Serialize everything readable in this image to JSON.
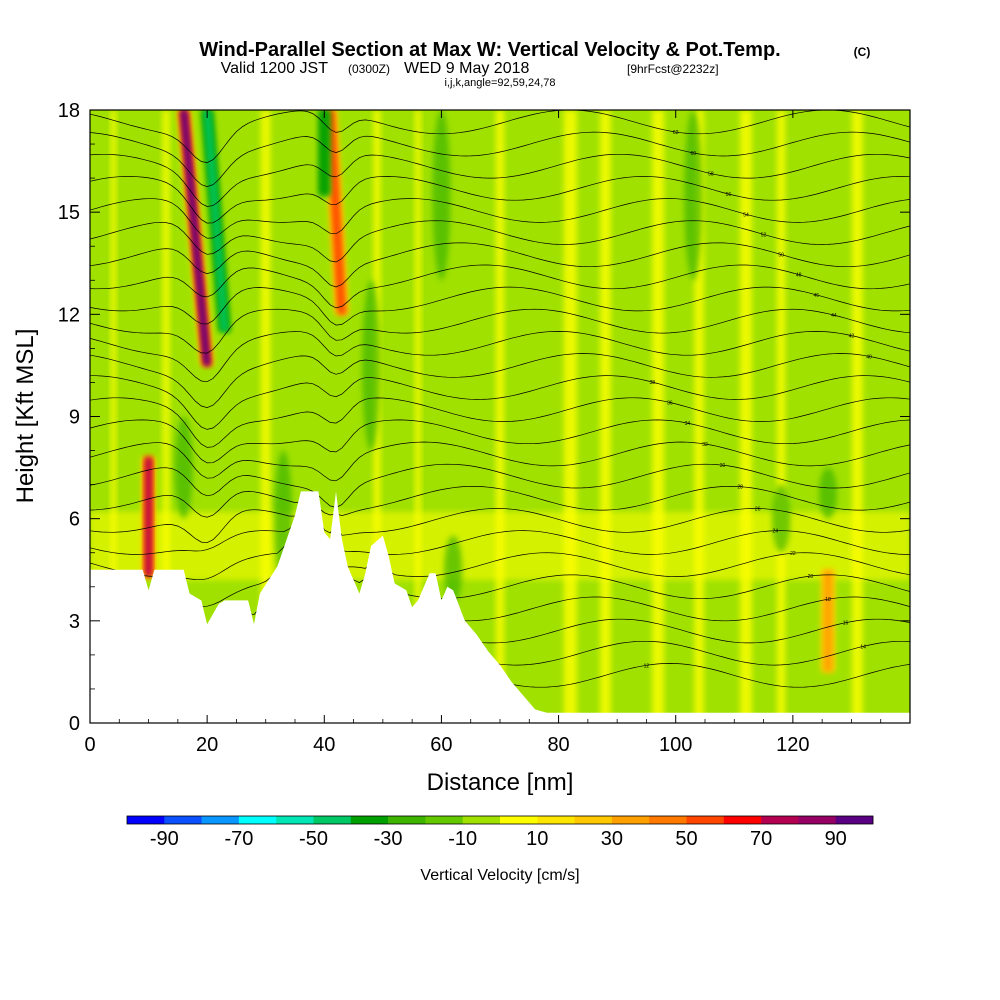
{
  "header": {
    "title_main": "Wind-Parallel Section at Max W: Vertical Velocity & Pot.Temp.",
    "title_unit": "(C)",
    "valid_a": "Valid 1200 JST",
    "valid_z": "(0300Z)",
    "valid_b": "WED 9 May 2018",
    "valid_fcst": "[9hrFcst@2232z]",
    "ijk": "i,j,k,angle=92,59,24,78"
  },
  "chart_data": {
    "type": "heatmap",
    "title": "Wind-Parallel Section at Max W: Vertical Velocity & Pot.Temp. (C)",
    "xlabel": "Distance [nm]",
    "ylabel": "Height [Kft MSL]",
    "xlim": [
      0,
      140
    ],
    "ylim": [
      0,
      18
    ],
    "x_ticks": [
      "0",
      "20",
      "40",
      "60",
      "80",
      "100",
      "120"
    ],
    "y_ticks": [
      "0",
      "3",
      "6",
      "9",
      "12",
      "15",
      "18"
    ],
    "colorbar": {
      "label": "Vertical Velocity [cm/s]",
      "tick_labels": [
        "-90",
        "-70",
        "-50",
        "-30",
        "-10",
        "10",
        "30",
        "50",
        "70",
        "90"
      ],
      "bins": [
        -100,
        -90,
        -80,
        -70,
        -60,
        -50,
        -40,
        -30,
        -20,
        -10,
        0,
        10,
        20,
        30,
        40,
        50,
        60,
        70,
        80,
        90,
        100
      ],
      "colors": [
        "#0000ff",
        "#0a50ff",
        "#0a96ff",
        "#00ffff",
        "#00e6b4",
        "#00c864",
        "#00a000",
        "#3cb400",
        "#64c800",
        "#a0e100",
        "#ffff00",
        "#ffe600",
        "#ffc800",
        "#ffa000",
        "#ff7800",
        "#ff4600",
        "#ff0000",
        "#b40050",
        "#960064",
        "#5a0082"
      ]
    },
    "terrain_kft": [
      [
        0,
        4.5
      ],
      [
        9,
        4.5
      ],
      [
        10,
        3.9
      ],
      [
        11,
        4.5
      ],
      [
        16,
        4.5
      ],
      [
        17,
        3.8
      ],
      [
        19,
        3.6
      ],
      [
        20,
        2.9
      ],
      [
        22,
        3.5
      ],
      [
        23,
        3.6
      ],
      [
        27,
        3.6
      ],
      [
        28,
        2.9
      ],
      [
        29,
        3.8
      ],
      [
        32,
        4.6
      ],
      [
        34,
        5.6
      ],
      [
        35,
        6.1
      ],
      [
        36,
        6.8
      ],
      [
        39,
        6.8
      ],
      [
        40,
        5.6
      ],
      [
        41,
        5.4
      ],
      [
        42,
        6.8
      ],
      [
        43,
        5.4
      ],
      [
        44,
        4.6
      ],
      [
        46,
        3.8
      ],
      [
        47,
        4.4
      ],
      [
        48,
        5.2
      ],
      [
        50,
        5.5
      ],
      [
        51,
        4.9
      ],
      [
        52,
        4.1
      ],
      [
        54,
        3.9
      ],
      [
        55,
        3.4
      ],
      [
        56,
        3.6
      ],
      [
        57,
        4.0
      ],
      [
        58,
        4.4
      ],
      [
        59,
        4.4
      ],
      [
        60,
        3.6
      ],
      [
        61,
        4.0
      ],
      [
        62,
        3.9
      ],
      [
        64,
        3.0
      ],
      [
        66,
        2.6
      ],
      [
        68,
        2.1
      ],
      [
        70,
        1.7
      ],
      [
        72,
        1.2
      ],
      [
        74,
        0.8
      ],
      [
        76,
        0.4
      ],
      [
        78,
        0.3
      ],
      [
        80,
        0.3
      ],
      [
        139,
        0.3
      ]
    ],
    "updraft_columns": [
      {
        "x_nm": 10,
        "z_bottom": 4.3,
        "z_top": 7.8,
        "peak_cms": 75,
        "lean": 0
      },
      {
        "x_nm": 20,
        "z_bottom": 10.5,
        "z_top": 18,
        "peak_cms": 95,
        "lean": -4
      },
      {
        "x_nm": 43,
        "z_bottom": 12.0,
        "z_top": 18,
        "peak_cms": 65,
        "lean": -2
      },
      {
        "x_nm": 126,
        "z_bottom": 1.5,
        "z_top": 4.5,
        "peak_cms": 40,
        "lean": 0
      }
    ],
    "downdraft_columns": [
      {
        "x_nm": 23,
        "z_bottom": 11.5,
        "z_top": 18,
        "peak_cms": -55,
        "lean": -3
      },
      {
        "x_nm": 40,
        "z_bottom": 15.5,
        "z_top": 18,
        "peak_cms": -40,
        "lean": 0
      }
    ],
    "theta_contours": {
      "levels_c": [
        12,
        14,
        16,
        18,
        20,
        22,
        24,
        26,
        28,
        30,
        32,
        34,
        36,
        38,
        40,
        42,
        44,
        46,
        48,
        50,
        52,
        54,
        56,
        58,
        60,
        62
      ],
      "base_height_kft": 1.4,
      "spacing_kft": 0.65
    }
  }
}
